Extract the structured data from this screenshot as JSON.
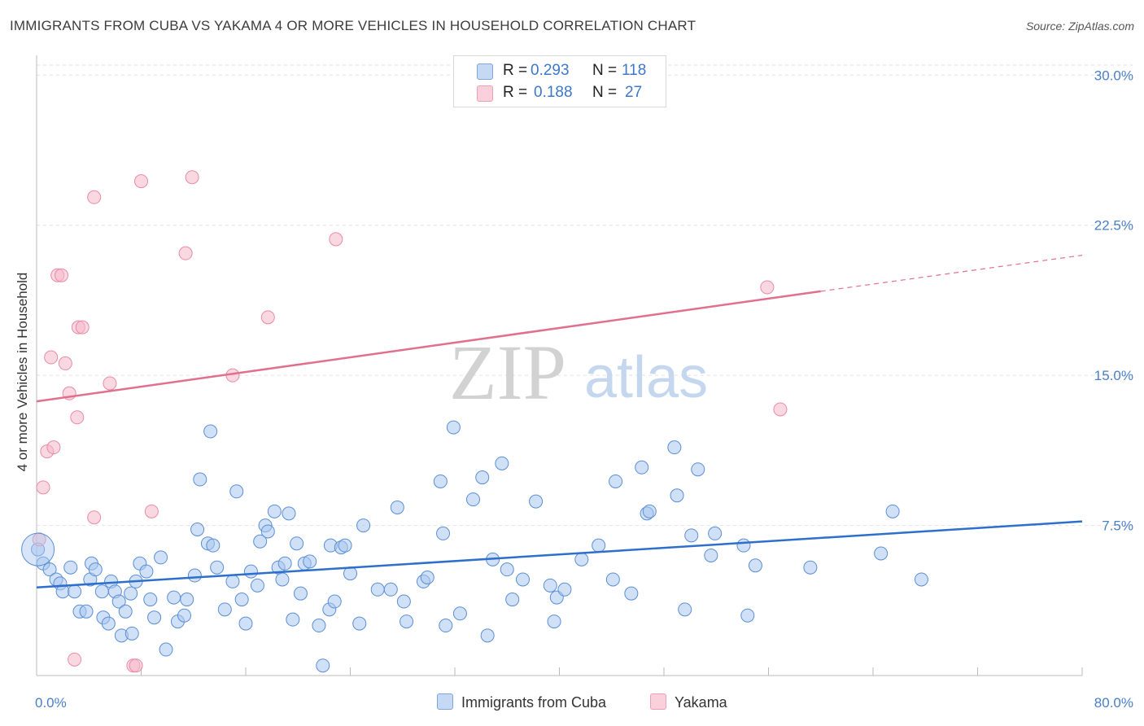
{
  "title": "IMMIGRANTS FROM CUBA VS YAKAMA 4 OR MORE VEHICLES IN HOUSEHOLD CORRELATION CHART",
  "source": "Source: ZipAtlas.com",
  "watermark": {
    "zip": "ZIP",
    "atlas": "atlas"
  },
  "legend": {
    "rows": [
      {
        "r_label": "R =",
        "r_value": "0.293",
        "n_label": "N =",
        "n_value": "118",
        "color": "#a9c6ef"
      },
      {
        "r_label": "R =",
        "r_value": "0.188",
        "n_label": "N =",
        "n_value": "27",
        "color": "#f6b8cb"
      }
    ]
  },
  "bottom_legend": [
    {
      "label": "Immigrants from Cuba",
      "color": "#a9c6ef"
    },
    {
      "label": "Yakama",
      "color": "#f6b8cb"
    }
  ],
  "chart_data": {
    "type": "scatter",
    "title": "IMMIGRANTS FROM CUBA VS YAKAMA 4 OR MORE VEHICLES IN HOUSEHOLD CORRELATION CHART",
    "xlabel": "",
    "ylabel": "4 or more Vehicles in Household",
    "xlim": [
      0,
      80
    ],
    "ylim": [
      0,
      30.5
    ],
    "x_tick_labels": [
      "0.0%",
      "80.0%"
    ],
    "y_ticks": [
      7.5,
      15.0,
      22.5,
      30.0
    ],
    "y_tick_labels": [
      "7.5%",
      "15.0%",
      "22.5%",
      "30.0%"
    ],
    "grid": true,
    "legend_position": "top-center",
    "series": [
      {
        "name": "Immigrants from Cuba",
        "color": "#a9c6ef",
        "stroke": "#5a8fd6",
        "trend": {
          "x": [
            0,
            80
          ],
          "y": [
            4.4,
            7.7
          ],
          "color": "#2d6fcb"
        },
        "points": [
          [
            0.1,
            6.3
          ],
          [
            0.5,
            5.6
          ],
          [
            1.0,
            5.3
          ],
          [
            1.5,
            4.8
          ],
          [
            1.8,
            4.6
          ],
          [
            2.0,
            4.2
          ],
          [
            2.6,
            5.4
          ],
          [
            2.9,
            4.2
          ],
          [
            3.3,
            3.2
          ],
          [
            3.8,
            3.2
          ],
          [
            4.1,
            4.8
          ],
          [
            4.2,
            5.6
          ],
          [
            4.5,
            5.3
          ],
          [
            5.0,
            4.2
          ],
          [
            5.1,
            2.9
          ],
          [
            5.5,
            2.6
          ],
          [
            5.7,
            4.7
          ],
          [
            6.0,
            4.2
          ],
          [
            6.3,
            3.7
          ],
          [
            6.5,
            2.0
          ],
          [
            6.8,
            3.2
          ],
          [
            7.2,
            4.1
          ],
          [
            7.3,
            2.1
          ],
          [
            7.6,
            4.7
          ],
          [
            7.9,
            5.6
          ],
          [
            8.4,
            5.2
          ],
          [
            8.7,
            3.8
          ],
          [
            9.0,
            2.9
          ],
          [
            9.5,
            5.9
          ],
          [
            9.9,
            1.3
          ],
          [
            10.5,
            3.9
          ],
          [
            10.8,
            2.7
          ],
          [
            11.3,
            3.0
          ],
          [
            11.5,
            3.8
          ],
          [
            12.1,
            5.0
          ],
          [
            12.3,
            7.3
          ],
          [
            12.5,
            9.8
          ],
          [
            13.1,
            6.6
          ],
          [
            13.5,
            6.5
          ],
          [
            13.8,
            5.4
          ],
          [
            13.3,
            12.2
          ],
          [
            14.4,
            3.3
          ],
          [
            15.0,
            4.7
          ],
          [
            15.3,
            9.2
          ],
          [
            15.7,
            3.8
          ],
          [
            16.0,
            2.6
          ],
          [
            16.4,
            5.2
          ],
          [
            16.9,
            4.5
          ],
          [
            17.1,
            6.7
          ],
          [
            17.5,
            7.5
          ],
          [
            17.7,
            7.2
          ],
          [
            18.2,
            8.2
          ],
          [
            18.5,
            5.4
          ],
          [
            18.8,
            4.8
          ],
          [
            19.0,
            5.6
          ],
          [
            19.3,
            8.1
          ],
          [
            19.6,
            2.8
          ],
          [
            19.9,
            6.6
          ],
          [
            20.2,
            4.1
          ],
          [
            20.5,
            5.6
          ],
          [
            20.9,
            5.7
          ],
          [
            21.6,
            2.5
          ],
          [
            21.9,
            0.5
          ],
          [
            22.4,
            3.3
          ],
          [
            22.8,
            3.7
          ],
          [
            22.5,
            6.5
          ],
          [
            23.3,
            6.4
          ],
          [
            23.6,
            6.5
          ],
          [
            24.0,
            5.1
          ],
          [
            24.7,
            2.6
          ],
          [
            26.1,
            4.3
          ],
          [
            27.1,
            4.3
          ],
          [
            27.6,
            8.4
          ],
          [
            28.1,
            3.7
          ],
          [
            28.3,
            2.7
          ],
          [
            29.6,
            4.7
          ],
          [
            29.9,
            4.9
          ],
          [
            30.9,
            9.7
          ],
          [
            31.1,
            7.1
          ],
          [
            31.3,
            2.5
          ],
          [
            31.9,
            12.4
          ],
          [
            32.4,
            3.1
          ],
          [
            33.4,
            8.8
          ],
          [
            34.1,
            9.9
          ],
          [
            34.5,
            2.0
          ],
          [
            34.9,
            5.8
          ],
          [
            35.6,
            10.6
          ],
          [
            36.0,
            5.3
          ],
          [
            36.4,
            3.8
          ],
          [
            37.2,
            4.8
          ],
          [
            38.2,
            8.7
          ],
          [
            39.3,
            4.5
          ],
          [
            39.6,
            2.7
          ],
          [
            39.8,
            3.9
          ],
          [
            40.4,
            4.3
          ],
          [
            41.7,
            5.8
          ],
          [
            44.1,
            4.8
          ],
          [
            44.3,
            9.7
          ],
          [
            45.5,
            4.1
          ],
          [
            46.3,
            10.4
          ],
          [
            46.7,
            8.1
          ],
          [
            46.9,
            8.2
          ],
          [
            48.8,
            11.4
          ],
          [
            49.0,
            9.0
          ],
          [
            49.6,
            3.3
          ],
          [
            50.6,
            10.3
          ],
          [
            51.6,
            6.0
          ],
          [
            51.9,
            7.1
          ],
          [
            54.1,
            6.5
          ],
          [
            54.4,
            3.0
          ],
          [
            59.2,
            5.4
          ],
          [
            64.6,
            6.1
          ],
          [
            65.5,
            8.2
          ],
          [
            67.7,
            4.8
          ],
          [
            50.1,
            7.0
          ],
          [
            55.0,
            5.5
          ],
          [
            43.0,
            6.5
          ],
          [
            25.0,
            7.5
          ]
        ]
      },
      {
        "name": "Yakama",
        "color": "#f6b8cb",
        "stroke": "#e98aa6",
        "trend": {
          "x": [
            0,
            60
          ],
          "y": [
            13.7,
            19.2
          ],
          "dashed_to": {
            "x": 80,
            "y": 21.0
          },
          "color": "#e1708f"
        },
        "points": [
          [
            0.2,
            6.8
          ],
          [
            0.5,
            9.4
          ],
          [
            0.8,
            11.2
          ],
          [
            1.1,
            15.9
          ],
          [
            1.3,
            11.4
          ],
          [
            1.6,
            20.0
          ],
          [
            1.9,
            20.0
          ],
          [
            2.2,
            15.6
          ],
          [
            2.5,
            14.1
          ],
          [
            2.9,
            0.8
          ],
          [
            3.1,
            12.9
          ],
          [
            3.2,
            17.4
          ],
          [
            3.5,
            17.4
          ],
          [
            4.4,
            7.9
          ],
          [
            4.4,
            23.9
          ],
          [
            5.6,
            14.6
          ],
          [
            7.4,
            0.5
          ],
          [
            7.6,
            0.5
          ],
          [
            8.0,
            24.7
          ],
          [
            8.8,
            8.2
          ],
          [
            11.4,
            21.1
          ],
          [
            11.9,
            24.9
          ],
          [
            17.7,
            17.9
          ],
          [
            22.9,
            21.8
          ],
          [
            15.0,
            15.0
          ],
          [
            55.9,
            19.4
          ],
          [
            56.9,
            13.3
          ]
        ]
      }
    ]
  }
}
